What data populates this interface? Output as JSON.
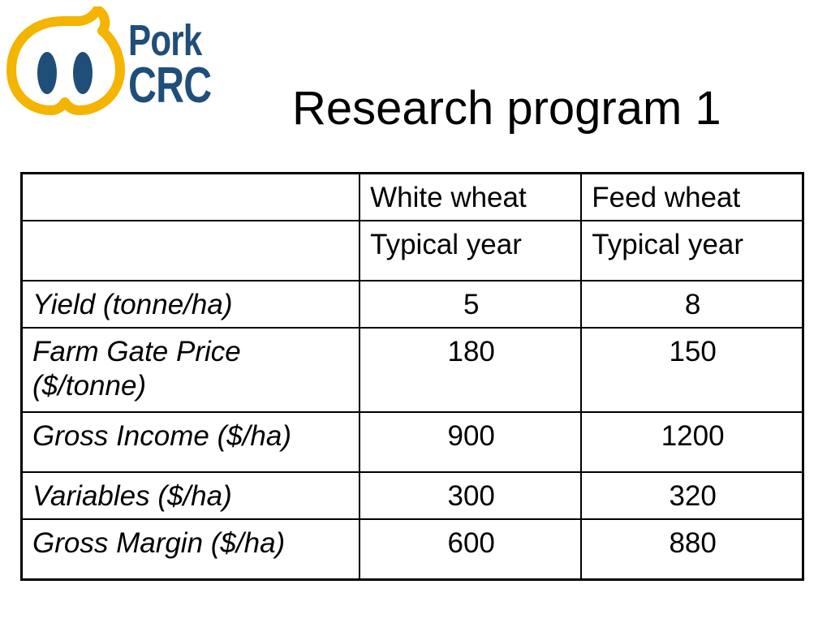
{
  "logo": {
    "line1": "Pork",
    "line2": "CRC"
  },
  "title": "Research program 1",
  "table": {
    "header_row_1": [
      "",
      "White wheat",
      "Feed wheat"
    ],
    "header_row_2": [
      "",
      "Typical year",
      "Typical year"
    ],
    "rows": [
      {
        "label": "Yield (tonne/ha)",
        "white": "5",
        "feed": "8"
      },
      {
        "label": "Farm Gate Price ($/tonne)",
        "white": "180",
        "feed": "150"
      },
      {
        "label": "Gross Income ($/ha)",
        "white": "900",
        "feed": "1200"
      },
      {
        "label": "Variables ($/ha)",
        "white": "300",
        "feed": "320"
      },
      {
        "label": "Gross Margin ($/ha)",
        "white": "600",
        "feed": "880"
      }
    ]
  },
  "colors": {
    "logo_blue": "#1f4e79",
    "logo_yellow": "#f4b400"
  }
}
